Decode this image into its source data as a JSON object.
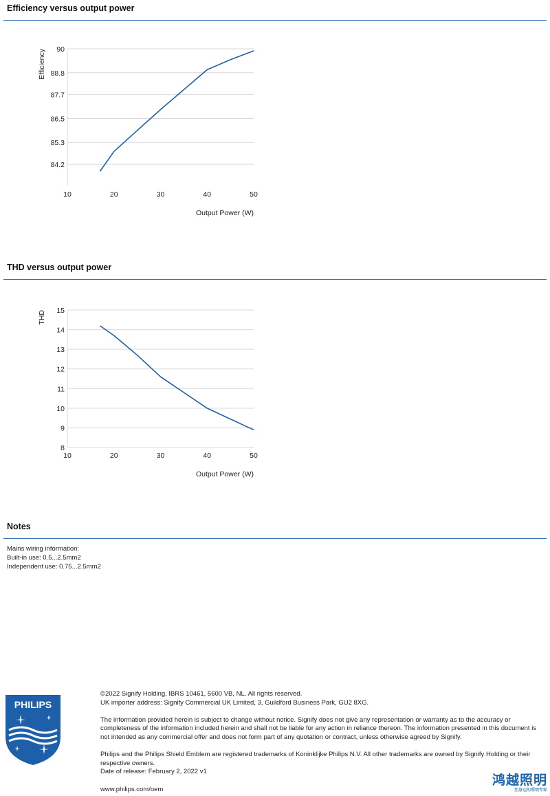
{
  "sections": {
    "efficiency_title": "Efficiency versus output power",
    "thd_title": "THD versus output power",
    "notes_title": "Notes"
  },
  "chart_data": [
    {
      "type": "line",
      "title": "",
      "xlabel": "Output Power (W)",
      "ylabel": "Efficiency",
      "xlim": [
        10,
        50
      ],
      "ylim": [
        83.1,
        90
      ],
      "xticks": [
        10,
        20,
        30,
        40,
        50
      ],
      "yticks": [
        84.2,
        85.3,
        86.5,
        87.7,
        88.8,
        90
      ],
      "ytick_labels": [
        "84.2",
        "85.3",
        "86.5",
        "87.7",
        "88.8",
        "90"
      ],
      "xtick_labels": [
        "10",
        "20",
        "30",
        "40",
        "50"
      ],
      "grid": "horizontal",
      "color": "#1f5fa8",
      "series": [
        {
          "x": [
            17,
            20,
            25,
            30,
            35,
            40,
            45,
            50
          ],
          "y": [
            83.85,
            84.85,
            85.9,
            86.95,
            87.95,
            88.95,
            89.45,
            89.9
          ]
        }
      ]
    },
    {
      "type": "line",
      "title": "",
      "xlabel": "Output Power (W)",
      "ylabel": "THD",
      "xlim": [
        10,
        50
      ],
      "ylim": [
        8,
        15
      ],
      "xticks": [
        10,
        20,
        30,
        40,
        50
      ],
      "yticks": [
        8,
        9,
        10,
        11,
        12,
        13,
        14,
        15
      ],
      "ytick_labels": [
        "8",
        "9",
        "10",
        "11",
        "12",
        "13",
        "14",
        "15"
      ],
      "xtick_labels": [
        "10",
        "20",
        "30",
        "40",
        "50"
      ],
      "grid": "horizontal",
      "color": "#1f5fa8",
      "series": [
        {
          "x": [
            17,
            20,
            25,
            30,
            35,
            40,
            45,
            50
          ],
          "y": [
            14.2,
            13.7,
            12.7,
            11.6,
            10.8,
            10.0,
            9.45,
            8.9
          ]
        }
      ]
    }
  ],
  "notes": {
    "lines": [
      "Mains wiring information:",
      "Built-in use: 0.5...2.5mm2",
      "Independent use: 0.75...2.5mm2"
    ]
  },
  "footer": {
    "copyright": "©2022 Signify Holding, IBRS 10461, 5600 VB, NL. All rights reserved.",
    "importer": "UK importer address: Signify Commercial UK Limited, 3, Guildford Business Park, GU2 8XG.",
    "disclaimer": "The information provided herein is subject to change without notice. Signify does not give any representation or warranty as to the accuracy or completeness of the information included herein and shall not be liable for any action in reliance thereon. The information presented in this document is not intended as any commercial offer and does not form part of any quotation or contract, unless otherwise agreed by Signify.",
    "trademarks": "Philips and the Philips Shield Emblem are registered trademarks of Koninklijke Philips N.V. All other trademarks are owned by Signify Holding or their respective owners.",
    "release": "Date of release: February 2, 2022 v1",
    "website": "www.philips.com/oem"
  },
  "branding": {
    "logo_text": "PHILIPS",
    "stamp_title": "鸿越照明",
    "stamp_subtitle": "您身边的照明专家",
    "brand_color": "#1d5fa9"
  }
}
